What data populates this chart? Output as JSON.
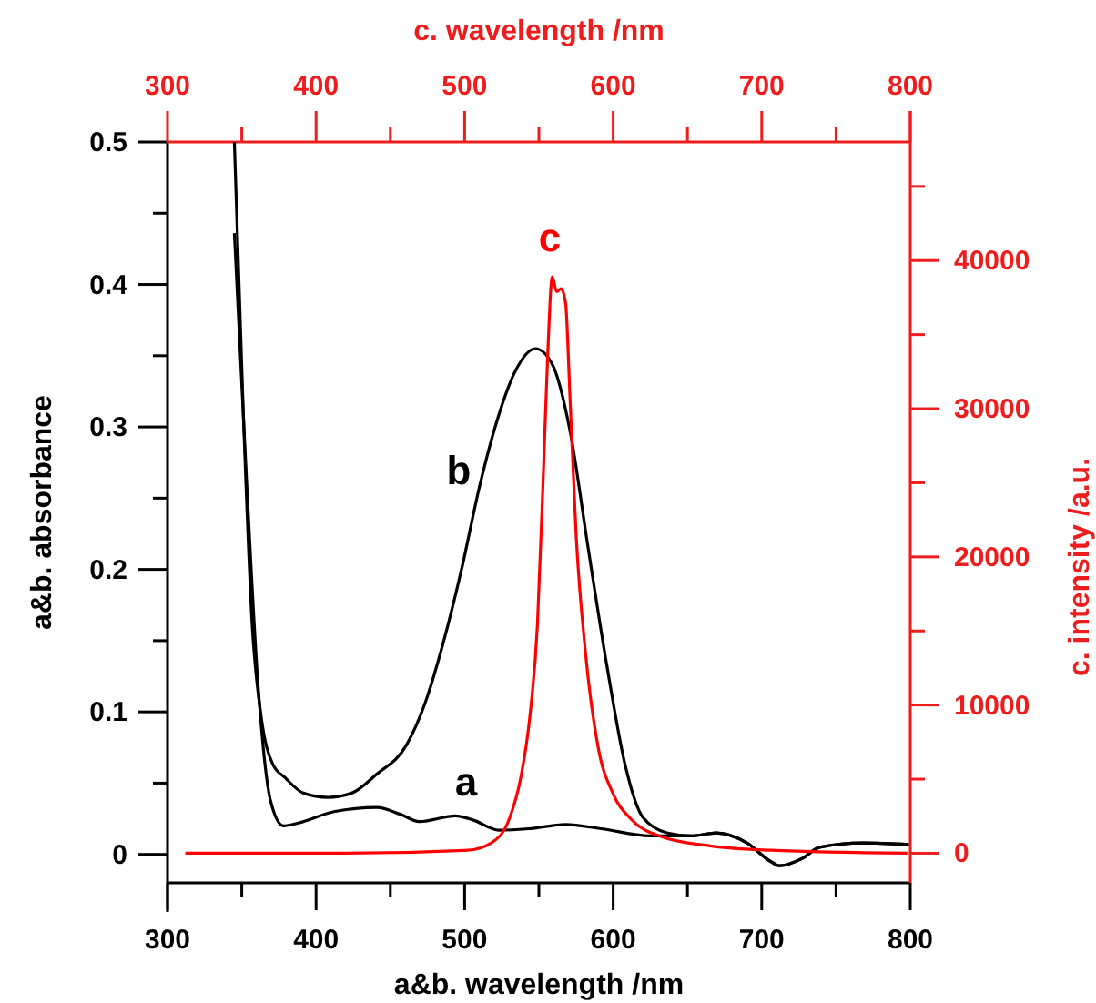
{
  "chart_data": {
    "type": "line",
    "xlabel": "a&b. wavelength /nm",
    "ylabel": "a&b. absorbance",
    "x2label": "c. wavelength /nm",
    "y2label": "c. intensity /a.u.",
    "xlim": [
      300,
      800
    ],
    "xticks": [
      300,
      {
        "value": 350,
        "label": null
      },
      400,
      {
        "value": 450,
        "label": null
      },
      500,
      {
        "value": 550,
        "label": null
      },
      600,
      {
        "value": 650,
        "label": null
      },
      700,
      {
        "value": 750,
        "label": null
      },
      800
    ],
    "x2lim": [
      300,
      800
    ],
    "x2ticks": [
      300,
      {
        "value": 350,
        "label": null
      },
      400,
      {
        "value": 450,
        "label": null
      },
      500,
      {
        "value": 550,
        "label": null
      },
      600,
      {
        "value": 650,
        "label": null
      },
      700,
      {
        "value": 750,
        "label": null
      },
      800
    ],
    "ylim": [
      -0.02,
      0.5
    ],
    "yticks": [
      0,
      {
        "value": 0.05,
        "label": null
      },
      0.1,
      {
        "value": 0.15,
        "label": null
      },
      0.2,
      {
        "value": 0.25,
        "label": null
      },
      0.3,
      {
        "value": 0.35,
        "label": null
      },
      0.4,
      {
        "value": 0.45,
        "label": null
      },
      0.5
    ],
    "y2lim": [
      -2000,
      48000
    ],
    "y2ticks": [
      0,
      {
        "value": 5000,
        "label": null
      },
      10000,
      {
        "value": 15000,
        "label": null
      },
      20000,
      {
        "value": 25000,
        "label": null
      },
      30000,
      {
        "value": 35000,
        "label": null
      },
      40000,
      {
        "value": 45000,
        "label": null
      }
    ],
    "grid": false,
    "line_style": "solid",
    "series": [
      {
        "color": "#000000",
        "x": [
          345,
          353,
          361,
          369.5,
          378,
          388,
          412,
          441,
          457,
          469.5,
          494,
          506,
          523,
          543,
          568,
          592,
          625,
          653,
          669.5,
          690,
          706,
          712,
          727,
          739,
          768,
          799
        ],
        "values": [
          0.436,
          0.267,
          0.118,
          0.037,
          0.02,
          0.022,
          0.03,
          0.033,
          0.028,
          0.023,
          0.027,
          0.024,
          0.017,
          0.018,
          0.021,
          0.018,
          0.013,
          0.013,
          0.015,
          0.008,
          -0.005,
          -0.008,
          -0.003,
          0.005,
          0.008,
          0.007
        ]
      },
      {
        "color": "#000000",
        "x": [
          345,
          351,
          357,
          363,
          371,
          379,
          391.5,
          408,
          424,
          440.5,
          461,
          473,
          485.5,
          497.7,
          510,
          522,
          534.5,
          547.6,
          559,
          571,
          583,
          596,
          608,
          620,
          636.6,
          653,
          669.5,
          690,
          706,
          712,
          727,
          739,
          768,
          799
        ],
        "values": [
          0.5,
          0.31,
          0.161,
          0.097,
          0.063,
          0.054,
          0.043,
          0.04,
          0.043,
          0.056,
          0.077,
          0.105,
          0.148,
          0.199,
          0.258,
          0.305,
          0.34,
          0.355,
          0.344,
          0.297,
          0.216,
          0.131,
          0.063,
          0.026,
          0.015,
          0.013,
          0.015,
          0.008,
          -0.005,
          -0.008,
          -0.003,
          0.005,
          0.008,
          0.007
        ]
      },
      {
        "color": "#ff0000",
        "axis": "y2",
        "x": [
          312,
          420,
          502,
          518,
          530,
          538,
          544,
          549,
          553,
          556,
          559,
          562,
          565,
          568,
          571,
          575,
          581.5,
          589.6,
          600,
          612,
          633,
          665,
          706,
          798
        ],
        "values": [
          0,
          0,
          200,
          700,
          2300,
          5200,
          9300,
          15400,
          25600,
          33800,
          38900,
          37900,
          38100,
          37100,
          30600,
          21600,
          13400,
          7300,
          4000,
          2300,
          1100,
          500,
          200,
          0
        ]
      }
    ],
    "annotations": [
      "a",
      "b",
      "c"
    ]
  }
}
